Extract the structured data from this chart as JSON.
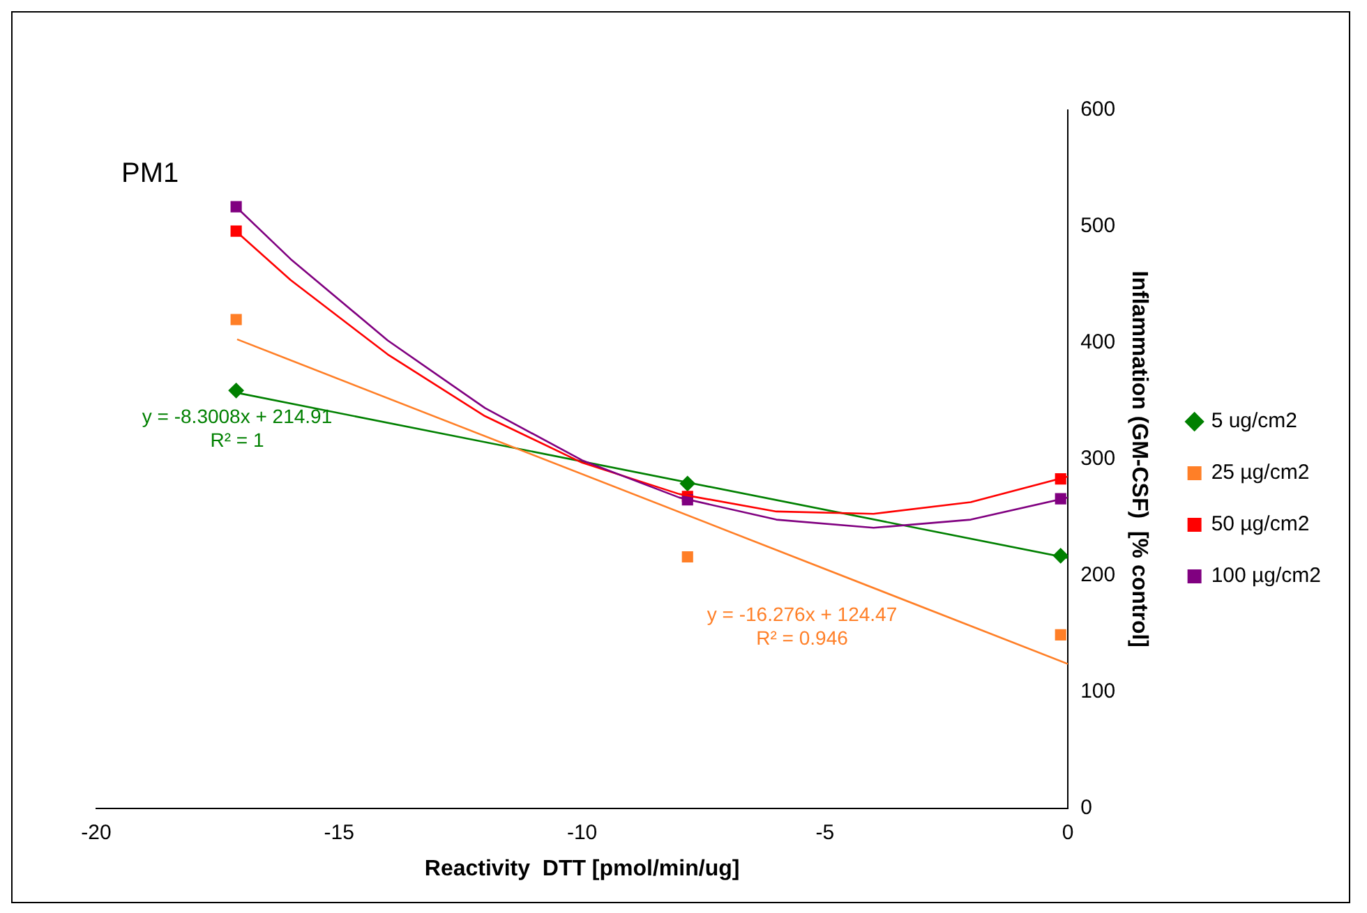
{
  "chart_data": {
    "type": "scatter",
    "xlabel": "Reactivity  DTT [pmol/min/ug]",
    "ylabel": "Inflammation (GM-CSF)  [% control]",
    "xlim": [
      -20,
      0
    ],
    "xticks": [
      -20,
      -15,
      -10,
      -5,
      0
    ],
    "ylim": [
      0,
      600
    ],
    "yticks": [
      0,
      100,
      200,
      300,
      400,
      500,
      600
    ],
    "grid": false,
    "legend": "right",
    "series": [
      {
        "name": "5 ug/cm2",
        "type": "scatter",
        "marker": "diamond",
        "color": "#008000",
        "x": [
          -17.12,
          -7.83,
          -0.15
        ],
        "values": [
          359,
          279,
          217
        ]
      },
      {
        "name": "25 µg/cm2",
        "type": "scatter",
        "marker": "square",
        "color": "#ff7f27",
        "x": [
          -17.12,
          -7.83,
          -0.15
        ],
        "values": [
          420,
          216,
          149
        ]
      },
      {
        "name": "50 µg/cm2",
        "type": "scatter",
        "marker": "square",
        "color": "#ff0000",
        "x": [
          -17.12,
          -7.83,
          -0.15
        ],
        "values": [
          496,
          268,
          283
        ]
      },
      {
        "name": "100 µg/cm2",
        "type": "scatter",
        "marker": "square",
        "color": "#800080",
        "x": [
          -17.12,
          -7.83,
          -0.15
        ],
        "values": [
          517,
          265,
          266
        ]
      },
      {
        "type": "line",
        "marker": "none",
        "color": "#008000",
        "x": [
          -17.1,
          0
        ],
        "values": [
          357,
          215
        ]
      },
      {
        "type": "line",
        "marker": "none",
        "color": "#ff7f27",
        "x": [
          -17.1,
          0
        ],
        "values": [
          403,
          124
        ]
      },
      {
        "type": "line",
        "marker": "none",
        "color": "#ff0000",
        "x": [
          -17.1,
          -16,
          -14,
          -12,
          -10,
          -8,
          -6,
          -4,
          -2,
          0
        ],
        "values": [
          495,
          454,
          390,
          337,
          297,
          270,
          255,
          253,
          263,
          285
        ]
      },
      {
        "type": "line",
        "marker": "none",
        "color": "#800080",
        "x": [
          -17.1,
          -16,
          -14,
          -12,
          -10,
          -8,
          -6,
          -4,
          -2,
          0
        ],
        "values": [
          516,
          472,
          402,
          344,
          299,
          267,
          248,
          241,
          248,
          267
        ]
      }
    ],
    "annotations": [
      "PM1",
      "y = -8.3008x + 214.91",
      "R² = 1",
      "y = -16.276x + 124.47",
      "R² = 0.946"
    ]
  }
}
